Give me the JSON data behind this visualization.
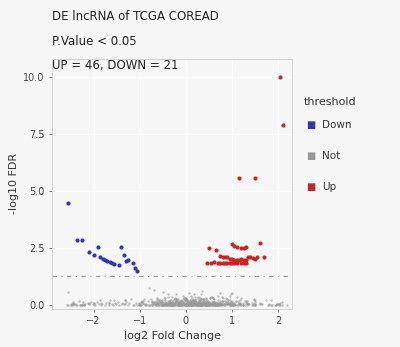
{
  "title_line1": "DE lncRNA of TCGA COREAD",
  "title_line2": "P.Value < 0.05",
  "title_line3": "UP = 46, DOWN = 21",
  "xlabel": "log2 Fold Change",
  "ylabel": "-log10 FDR",
  "xlim": [
    -2.9,
    2.3
  ],
  "ylim": [
    -0.15,
    10.8
  ],
  "hline_y": 1.3,
  "threshold_line_color": "#999999",
  "bg_color": "#f7f7f7",
  "plot_bg_color": "#f7f7f7",
  "grid_color": "#ffffff",
  "legend_title": "threshold",
  "colors": {
    "Down": "#3333bb",
    "Not": "#999999",
    "Up": "#cc2222"
  },
  "down_points": [
    [
      -2.55,
      4.5
    ],
    [
      -2.35,
      2.85
    ],
    [
      -2.25,
      2.85
    ],
    [
      -2.1,
      2.35
    ],
    [
      -2.0,
      2.2
    ],
    [
      -1.9,
      2.55
    ],
    [
      -1.85,
      2.1
    ],
    [
      -1.8,
      2.05
    ],
    [
      -1.75,
      2.0
    ],
    [
      -1.7,
      1.95
    ],
    [
      -1.65,
      1.92
    ],
    [
      -1.6,
      1.88
    ],
    [
      -1.55,
      1.82
    ],
    [
      -1.45,
      1.75
    ],
    [
      -1.4,
      2.55
    ],
    [
      -1.35,
      2.2
    ],
    [
      -1.3,
      1.95
    ],
    [
      -1.25,
      2.0
    ],
    [
      -1.15,
      1.85
    ],
    [
      -1.1,
      1.62
    ],
    [
      -1.05,
      1.5
    ]
  ],
  "up_points": [
    [
      2.05,
      10.0
    ],
    [
      2.1,
      7.9
    ],
    [
      1.15,
      5.6
    ],
    [
      1.5,
      5.6
    ],
    [
      0.5,
      2.5
    ],
    [
      0.65,
      2.45
    ],
    [
      1.0,
      2.7
    ],
    [
      1.05,
      2.6
    ],
    [
      1.1,
      2.55
    ],
    [
      1.2,
      2.5
    ],
    [
      1.25,
      2.5
    ],
    [
      1.3,
      2.55
    ],
    [
      0.75,
      2.15
    ],
    [
      0.8,
      2.1
    ],
    [
      0.85,
      2.12
    ],
    [
      0.9,
      2.1
    ],
    [
      0.95,
      2.05
    ],
    [
      1.0,
      2.02
    ],
    [
      1.05,
      2.0
    ],
    [
      1.1,
      2.0
    ],
    [
      1.15,
      2.0
    ],
    [
      1.2,
      2.05
    ],
    [
      1.25,
      2.0
    ],
    [
      1.3,
      2.0
    ],
    [
      1.35,
      2.1
    ],
    [
      1.4,
      2.12
    ],
    [
      1.45,
      2.08
    ],
    [
      1.5,
      2.05
    ],
    [
      1.55,
      2.1
    ],
    [
      0.6,
      1.9
    ],
    [
      0.7,
      1.88
    ],
    [
      0.75,
      1.88
    ],
    [
      0.8,
      1.87
    ],
    [
      0.85,
      1.86
    ],
    [
      0.9,
      1.86
    ],
    [
      0.95,
      1.87
    ],
    [
      1.0,
      1.86
    ],
    [
      1.05,
      1.86
    ],
    [
      1.1,
      1.87
    ],
    [
      1.2,
      1.87
    ],
    [
      1.25,
      1.86
    ],
    [
      1.3,
      1.87
    ],
    [
      1.6,
      2.75
    ],
    [
      1.7,
      2.1
    ],
    [
      0.45,
      1.85
    ],
    [
      0.55,
      1.86
    ]
  ],
  "seed": 42,
  "n_not_dense": 700
}
